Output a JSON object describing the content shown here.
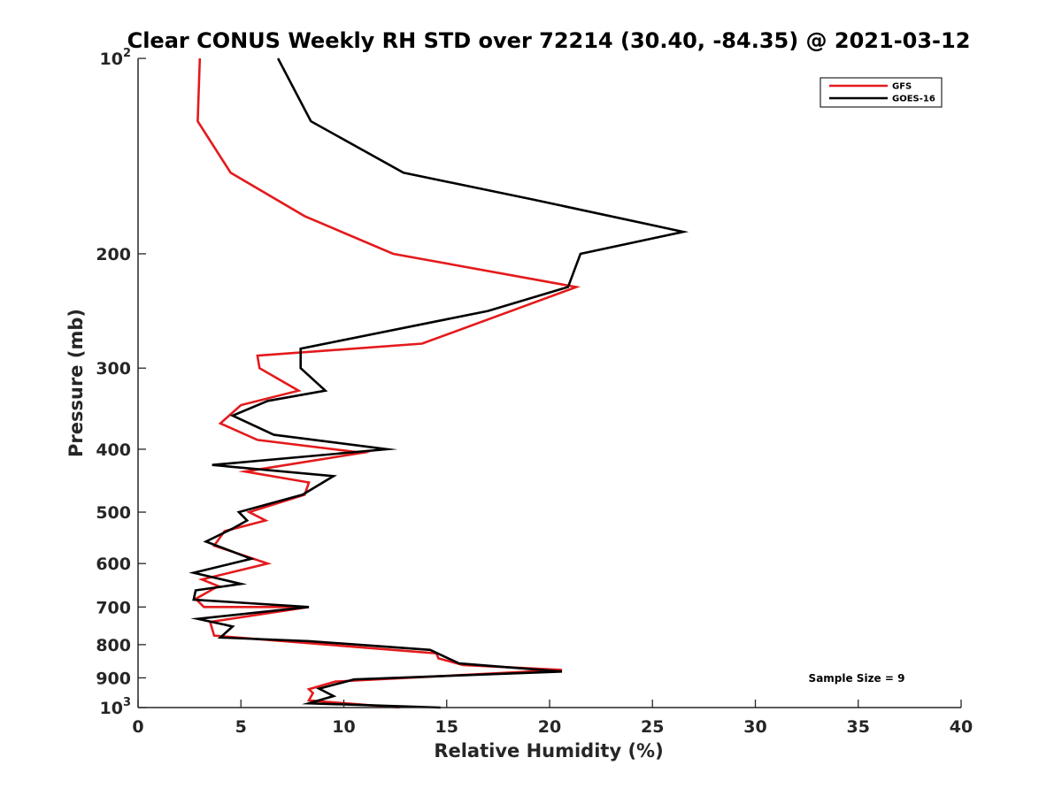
{
  "chart_data": {
    "type": "line",
    "title": "Clear CONUS Weekly RH STD over 72214 (30.40, -84.35) @ 2021-03-12",
    "xlabel": "Relative Humidity (%)",
    "ylabel": "Pressure (mb)",
    "xlim": [
      0,
      40
    ],
    "ylim": [
      100,
      1000
    ],
    "yscale": "log",
    "y_reversed": true,
    "xticks": [
      {
        "value": 0,
        "label": "0"
      },
      {
        "value": 5,
        "label": "5"
      },
      {
        "value": 10,
        "label": "10"
      },
      {
        "value": 15,
        "label": "15"
      },
      {
        "value": 20,
        "label": "20"
      },
      {
        "value": 25,
        "label": "25"
      },
      {
        "value": 30,
        "label": "30"
      },
      {
        "value": 35,
        "label": "35"
      },
      {
        "value": 40,
        "label": "40"
      }
    ],
    "yticks": [
      {
        "value": 100,
        "base": "10",
        "exp": "2"
      },
      {
        "value": 200,
        "label": "200"
      },
      {
        "value": 300,
        "label": "300"
      },
      {
        "value": 400,
        "label": "400"
      },
      {
        "value": 500,
        "label": "500"
      },
      {
        "value": 600,
        "label": "600"
      },
      {
        "value": 700,
        "label": "700"
      },
      {
        "value": 800,
        "label": "800"
      },
      {
        "value": 900,
        "label": "900"
      },
      {
        "value": 1000,
        "base": "10",
        "exp": "3"
      }
    ],
    "legend": {
      "position": "top-right"
    },
    "annotation": "Sample Size = 9",
    "series": [
      {
        "name": "GFS",
        "color": "#e41a1c",
        "x": [
          3.0,
          2.9,
          4.5,
          8.1,
          12.4,
          21.3,
          13.8,
          5.8,
          5.9,
          7.8,
          5.0,
          4.0,
          5.8,
          10.9,
          5.2,
          8.3,
          8.1,
          5.4,
          6.2,
          4.2,
          3.7,
          6.3,
          3.1,
          3.9,
          2.8,
          3.2,
          8.3,
          3.5,
          3.7,
          14.5,
          14.6,
          15.8,
          20.6,
          9.6,
          8.3,
          8.5,
          8.3,
          12.7
        ],
        "y": [
          100,
          125,
          150,
          175,
          200,
          225,
          275,
          287,
          300,
          325,
          342,
          365,
          387,
          405,
          433,
          450,
          470,
          500,
          515,
          535,
          563,
          600,
          635,
          650,
          680,
          700,
          700,
          738,
          775,
          825,
          840,
          860,
          875,
          912,
          937,
          950,
          975,
          1000
        ]
      },
      {
        "name": "GOES-16",
        "color": "#000000",
        "x": [
          6.8,
          8.4,
          12.9,
          19.2,
          26.5,
          21.5,
          20.9,
          17.0,
          7.9,
          7.9,
          9.1,
          6.3,
          4.6,
          6.6,
          12.1,
          3.6,
          9.5,
          8.0,
          4.9,
          5.3,
          4.6,
          3.3,
          5.5,
          2.7,
          5.0,
          2.8,
          2.7,
          8.3,
          2.9,
          4.6,
          4.0,
          8.3,
          14.2,
          15.6,
          20.6,
          10.5,
          8.8,
          9.5,
          8.3,
          14.7
        ],
        "y": [
          100,
          125,
          150,
          165,
          185,
          200,
          225,
          245,
          280,
          300,
          325,
          337,
          355,
          380,
          400,
          423,
          440,
          470,
          500,
          515,
          530,
          555,
          590,
          620,
          645,
          660,
          682,
          700,
          730,
          750,
          780,
          790,
          815,
          855,
          880,
          905,
          935,
          960,
          985,
          1000
        ]
      }
    ]
  }
}
